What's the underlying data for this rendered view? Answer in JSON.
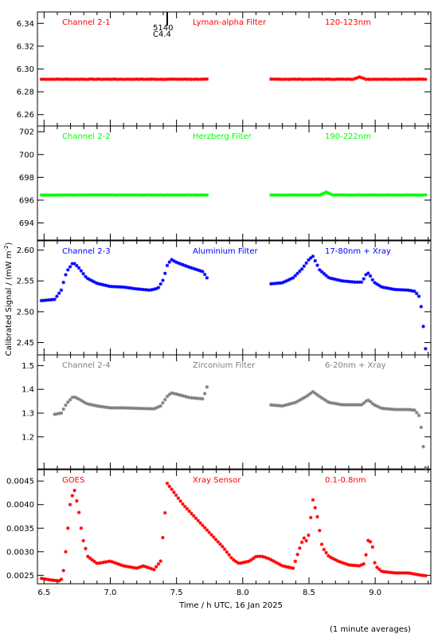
{
  "chart_data": {
    "type": "scatter",
    "marker": "asterisk",
    "x_range": [
      6.45,
      9.42
    ],
    "x_ticks": [
      6.5,
      7.0,
      7.5,
      8.0,
      8.5,
      9.0
    ],
    "x_tick_labels": [
      "6.5",
      "7.0",
      "7.5",
      "8.0",
      "8.5",
      "9.0"
    ],
    "xlabel": "Time / h UTC, 16 Jan 2025",
    "ylabel": "Calibrated Signal / (mW m",
    "ylabel_sup": "-2",
    "ylabel_close": ")",
    "footnote": "(1 minute averages)",
    "colors": {
      "ch1": "#ff0000",
      "ch2": "#00ff00",
      "ch3": "#0000ff",
      "ch4": "#808080",
      "goes": "#ff0000",
      "axis": "#000000"
    },
    "gap": [
      7.73,
      8.2
    ],
    "marker_event": {
      "x": 7.43,
      "labels": [
        "5140",
        "C4.4"
      ]
    },
    "panels": [
      {
        "id": "ch1",
        "labels": [
          "Channel 2-1",
          "Lyman-alpha Filter",
          "120-123nm"
        ],
        "color": "#ff0000",
        "ylim": [
          6.25,
          6.35
        ],
        "yticks": [
          6.26,
          6.28,
          6.3,
          6.32,
          6.34
        ],
        "ytick_labels": [
          "6.26",
          "6.28",
          "6.30",
          "6.32",
          "6.34"
        ],
        "kind": "flat",
        "base": 6.291,
        "noise": 0.0003,
        "bumps": [
          [
            8.88,
            0.002
          ]
        ]
      },
      {
        "id": "ch2",
        "labels": [
          "Channel 2-2",
          "Herzberg Filter",
          "190-222nm"
        ],
        "color": "#00ff00",
        "ylim": [
          692.5,
          702.5
        ],
        "yticks": [
          694,
          696,
          698,
          700,
          702
        ],
        "ytick_labels": [
          "694",
          "696",
          "698",
          "700",
          "702"
        ],
        "kind": "flat",
        "base": 696.45,
        "noise": 0.02,
        "bumps": [
          [
            8.63,
            0.25
          ]
        ]
      },
      {
        "id": "ch3",
        "labels": [
          "Channel 2-3",
          "Aluminium Filter",
          "17-80nm + Xray"
        ],
        "color": "#0000ff",
        "ylim": [
          2.43,
          2.615
        ],
        "yticks": [
          2.45,
          2.5,
          2.55,
          2.6
        ],
        "ytick_labels": [
          "2.45",
          "2.50",
          "2.55",
          "2.60"
        ],
        "kind": "curve",
        "knots": [
          [
            6.48,
            2.518
          ],
          [
            6.58,
            2.52
          ],
          [
            6.63,
            2.535
          ],
          [
            6.67,
            2.565
          ],
          [
            6.72,
            2.58
          ],
          [
            6.76,
            2.572
          ],
          [
            6.82,
            2.555
          ],
          [
            6.9,
            2.546
          ],
          [
            7.0,
            2.541
          ],
          [
            7.1,
            2.54
          ],
          [
            7.2,
            2.537
          ],
          [
            7.3,
            2.535
          ],
          [
            7.36,
            2.538
          ],
          [
            7.4,
            2.552
          ],
          [
            7.43,
            2.575
          ],
          [
            7.46,
            2.585
          ],
          [
            7.5,
            2.58
          ],
          [
            7.6,
            2.572
          ],
          [
            7.7,
            2.565
          ],
          [
            7.73,
            2.555
          ],
          [
            8.2,
            2.545
          ],
          [
            8.3,
            2.547
          ],
          [
            8.38,
            2.555
          ],
          [
            8.45,
            2.57
          ],
          [
            8.5,
            2.585
          ],
          [
            8.53,
            2.59
          ],
          [
            8.58,
            2.568
          ],
          [
            8.65,
            2.555
          ],
          [
            8.75,
            2.55
          ],
          [
            8.85,
            2.548
          ],
          [
            8.9,
            2.548
          ],
          [
            8.93,
            2.56
          ],
          [
            8.95,
            2.563
          ],
          [
            8.99,
            2.548
          ],
          [
            9.05,
            2.54
          ],
          [
            9.15,
            2.536
          ],
          [
            9.25,
            2.535
          ],
          [
            9.3,
            2.533
          ],
          [
            9.33,
            2.525
          ],
          [
            9.35,
            2.505
          ],
          [
            9.38,
            2.44
          ]
        ]
      },
      {
        "id": "ch4",
        "labels": [
          "Channel 2-4",
          "Zirconium Filter",
          "6-20nm + Xray"
        ],
        "color": "#808080",
        "ylim": [
          1.065,
          1.545
        ],
        "yticks": [
          1.2,
          1.3,
          1.4,
          1.5
        ],
        "ytick_labels": [
          "1.2",
          "1.3",
          "1.4",
          "1.5"
        ],
        "kind": "curve",
        "knots": [
          [
            6.58,
            1.295
          ],
          [
            6.63,
            1.3
          ],
          [
            6.67,
            1.34
          ],
          [
            6.72,
            1.37
          ],
          [
            6.76,
            1.36
          ],
          [
            6.82,
            1.34
          ],
          [
            6.9,
            1.33
          ],
          [
            7.0,
            1.322
          ],
          [
            7.1,
            1.322
          ],
          [
            7.2,
            1.32
          ],
          [
            7.33,
            1.318
          ],
          [
            7.38,
            1.33
          ],
          [
            7.43,
            1.37
          ],
          [
            7.46,
            1.385
          ],
          [
            7.5,
            1.38
          ],
          [
            7.6,
            1.365
          ],
          [
            7.7,
            1.36
          ],
          [
            7.73,
            1.41
          ],
          [
            8.2,
            1.335
          ],
          [
            8.3,
            1.33
          ],
          [
            8.4,
            1.345
          ],
          [
            8.48,
            1.37
          ],
          [
            8.53,
            1.39
          ],
          [
            8.58,
            1.37
          ],
          [
            8.65,
            1.345
          ],
          [
            8.75,
            1.335
          ],
          [
            8.85,
            1.335
          ],
          [
            8.9,
            1.335
          ],
          [
            8.93,
            1.35
          ],
          [
            8.95,
            1.355
          ],
          [
            8.99,
            1.335
          ],
          [
            9.05,
            1.32
          ],
          [
            9.15,
            1.315
          ],
          [
            9.25,
            1.315
          ],
          [
            9.3,
            1.312
          ],
          [
            9.33,
            1.29
          ],
          [
            9.35,
            1.23
          ],
          [
            9.38,
            1.07
          ]
        ]
      },
      {
        "id": "goes",
        "labels": [
          "GOES",
          "Xray Sensor",
          "0.1-0.8nm"
        ],
        "color": "#ff0000",
        "ylim": [
          0.00232,
          0.00474
        ],
        "yticks": [
          0.0025,
          0.003,
          0.0035,
          0.004,
          0.0045
        ],
        "ytick_labels": [
          "0.0025",
          "0.0030",
          "0.0035",
          "0.0040",
          "0.0045"
        ],
        "kind": "curve",
        "knots": [
          [
            6.45,
            0.00245
          ],
          [
            6.55,
            0.0024
          ],
          [
            6.62,
            0.00238
          ],
          [
            6.64,
            0.00245
          ],
          [
            6.66,
            0.0029
          ],
          [
            6.68,
            0.0035
          ],
          [
            6.7,
            0.0041
          ],
          [
            6.73,
            0.0043
          ],
          [
            6.76,
            0.0039
          ],
          [
            6.79,
            0.0033
          ],
          [
            6.83,
            0.0029
          ],
          [
            6.9,
            0.00275
          ],
          [
            7.0,
            0.0028
          ],
          [
            7.1,
            0.0027
          ],
          [
            7.2,
            0.00265
          ],
          [
            7.25,
            0.0027
          ],
          [
            7.33,
            0.00262
          ],
          [
            7.38,
            0.0028
          ],
          [
            7.41,
            0.0037
          ],
          [
            7.43,
            0.00445
          ],
          [
            7.47,
            0.0043
          ],
          [
            7.55,
            0.004
          ],
          [
            7.65,
            0.0037
          ],
          [
            7.75,
            0.0034
          ],
          [
            7.85,
            0.0031
          ],
          [
            7.92,
            0.00285
          ],
          [
            7.97,
            0.00275
          ],
          [
            8.05,
            0.0028
          ],
          [
            8.1,
            0.0029
          ],
          [
            8.15,
            0.0029
          ],
          [
            8.2,
            0.00285
          ],
          [
            8.3,
            0.0027
          ],
          [
            8.38,
            0.00265
          ],
          [
            8.42,
            0.003
          ],
          [
            8.46,
            0.0033
          ],
          [
            8.49,
            0.0032
          ],
          [
            8.53,
            0.0041
          ],
          [
            8.56,
            0.0038
          ],
          [
            8.6,
            0.0031
          ],
          [
            8.65,
            0.0029
          ],
          [
            8.72,
            0.0028
          ],
          [
            8.8,
            0.00272
          ],
          [
            8.88,
            0.0027
          ],
          [
            8.92,
            0.00275
          ],
          [
            8.95,
            0.0033
          ],
          [
            8.98,
            0.0031
          ],
          [
            9.0,
            0.0027
          ],
          [
            9.05,
            0.00258
          ],
          [
            9.15,
            0.00255
          ],
          [
            9.25,
            0.00255
          ],
          [
            9.35,
            0.0025
          ],
          [
            9.42,
            0.00248
          ]
        ]
      }
    ]
  }
}
